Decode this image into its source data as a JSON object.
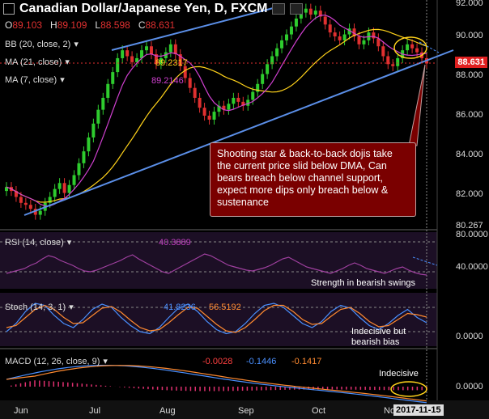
{
  "chart_data": [
    {
      "type": "candlestick",
      "title": "Canadian Dollar/Japanese Yen, D, FXCM",
      "ohlc_label": {
        "o": "O",
        "h": "H",
        "l": "L",
        "c": "C"
      },
      "ohlc": {
        "open": "89.103",
        "high": "89.109",
        "low": "88.598",
        "close": "88.631"
      },
      "indicators": [
        {
          "label": "BB (20, close, 2)",
          "value": ""
        },
        {
          "label": "MA (21, close)",
          "value": "89.2317"
        },
        {
          "label": "MA (7, close)",
          "value": "89.2146"
        }
      ],
      "y_ticks": [
        "92.000",
        "90.000",
        "88.000",
        "86.000",
        "84.000",
        "82.000",
        "80.267"
      ],
      "x_ticks": [
        "Jun",
        "Jul",
        "Aug",
        "Sep",
        "Oct",
        "No"
      ],
      "last_price": "88.631",
      "last_date": "2017-11-15",
      "annotation": "Shooting star & back-to-back dojis take the current price slid below DMA, Can bears breach below channel support, expect more dips only  breach below & sustenance",
      "series_close": [
        82.4,
        82.2,
        81.9,
        81.6,
        81.5,
        81.3,
        81.0,
        81.2,
        81.6,
        81.9,
        82.3,
        82.6,
        82.1,
        82.5,
        83.0,
        83.6,
        84.2,
        84.9,
        85.6,
        86.3,
        86.9,
        87.6,
        88.2,
        88.9,
        89.3,
        89.0,
        88.7,
        88.9,
        89.3,
        89.5,
        89.1,
        88.6,
        88.9,
        89.2,
        89.6,
        89.1,
        88.5,
        87.9,
        87.4,
        86.9,
        86.4,
        86.0,
        85.8,
        86.2,
        86.5,
        86.3,
        86.6,
        86.9,
        86.7,
        86.5,
        86.8,
        87.2,
        87.6,
        88.1,
        88.6,
        89.0,
        89.4,
        89.8,
        90.1,
        90.5,
        90.9,
        91.2,
        91.4,
        91.1,
        91.3,
        91.0,
        90.6,
        90.2,
        90.0,
        89.8,
        90.1,
        90.4,
        90.0,
        89.6,
        89.8,
        90.2,
        89.9,
        89.5,
        89.0,
        88.6,
        88.5,
        88.9,
        89.3,
        89.6,
        89.4,
        89.2,
        88.9,
        88.63
      ]
    },
    {
      "type": "line",
      "title": "RSI (14, close)",
      "value": "40.3889",
      "y_ticks": [
        "80.0000",
        "40.0000"
      ],
      "annotation": "Strength in bearish swings",
      "values": [
        42,
        44,
        46,
        48,
        52,
        55,
        60,
        64,
        62,
        58,
        55,
        52,
        48,
        45,
        44,
        46,
        49,
        52,
        55,
        58,
        62,
        65,
        60,
        56,
        52,
        48,
        44,
        42,
        46,
        50,
        54,
        58,
        62,
        66,
        64,
        60,
        56,
        52,
        50,
        48,
        46,
        45,
        47,
        49,
        52,
        56,
        60,
        62,
        58,
        54,
        50,
        48,
        46,
        44,
        42,
        45,
        48,
        52,
        55,
        52,
        48,
        46,
        44,
        42,
        45,
        48,
        50,
        46,
        43,
        41,
        40
      ]
    },
    {
      "type": "line",
      "title": "Stoch (14, 3, 1)",
      "values_label": [
        "41.8236",
        "56.5192"
      ],
      "y_ticks": [
        "0.0000"
      ],
      "annotation": "Indecisive but bearish bias",
      "k": [
        20,
        40,
        70,
        90,
        85,
        60,
        40,
        30,
        50,
        75,
        88,
        80,
        55,
        35,
        20,
        15,
        30,
        55,
        78,
        88,
        70,
        45,
        25,
        15,
        20,
        40,
        65,
        85,
        90,
        80,
        60,
        40,
        30,
        45,
        70,
        85,
        78,
        55,
        35,
        25,
        40,
        60,
        75,
        55,
        42
      ],
      "d": [
        30,
        35,
        55,
        75,
        85,
        75,
        55,
        40,
        42,
        60,
        78,
        82,
        68,
        48,
        30,
        22,
        25,
        42,
        62,
        80,
        78,
        58,
        38,
        22,
        18,
        30,
        50,
        72,
        85,
        85,
        70,
        50,
        38,
        40,
        58,
        75,
        80,
        65,
        45,
        32,
        35,
        50,
        65,
        62,
        56
      ]
    },
    {
      "type": "line",
      "title": "MACD (12, 26, close, 9)",
      "values_label": [
        "-0.0028",
        "-0.1446",
        "-0.1417"
      ],
      "y_ticks": [
        "0.0000"
      ],
      "annotation": "Indecisive"
    }
  ]
}
